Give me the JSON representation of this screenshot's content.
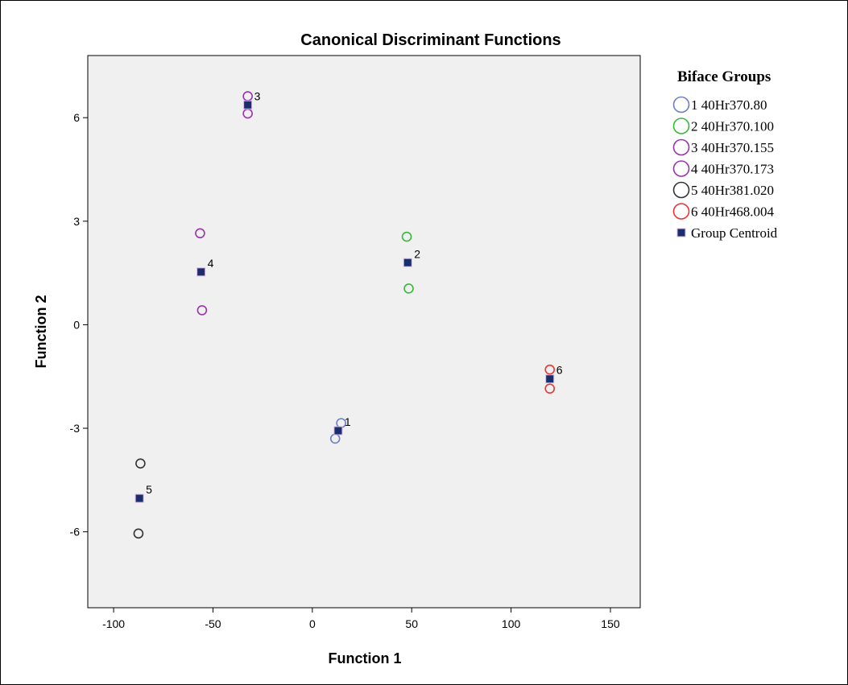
{
  "chart_data": {
    "type": "scatter",
    "title": "Canonical Discriminant Functions",
    "xlabel": "Function 1",
    "ylabel": "Function 2",
    "xlim": [
      -113,
      165
    ],
    "ylim": [
      -8.2,
      7.8
    ],
    "xticks": [
      -100,
      -50,
      0,
      50,
      100,
      150
    ],
    "yticks": [
      -6,
      -3,
      0,
      3,
      6
    ],
    "xtick_labels": [
      "-100",
      "-50",
      "0",
      "50",
      "100",
      "150"
    ],
    "ytick_labels": [
      "-6",
      "-3",
      "0",
      "3",
      "6"
    ],
    "grid": false,
    "legend_title": "Biface Groups",
    "legend_position": "right",
    "plot_background": "#f0f0f0",
    "series": [
      {
        "name": "1 40Hr370.80",
        "color": "#6b7fc4",
        "points": [
          [
            14.5,
            -2.85
          ],
          [
            11.5,
            -3.3
          ]
        ]
      },
      {
        "name": "2 40Hr370.100",
        "color": "#33bb33",
        "points": [
          [
            47.5,
            2.55
          ],
          [
            48.5,
            1.05
          ]
        ]
      },
      {
        "name": "3 40Hr370.155",
        "color": "#9933aa",
        "points": [
          [
            -32.5,
            6.62
          ],
          [
            -32.5,
            6.12
          ]
        ]
      },
      {
        "name": "4 40Hr370.173",
        "color": "#9933aa",
        "points": [
          [
            -56.5,
            2.65
          ],
          [
            -55.5,
            0.42
          ]
        ]
      },
      {
        "name": "5 40Hr381.020",
        "color": "#333333",
        "points": [
          [
            -86.5,
            -4.02
          ],
          [
            -87.5,
            -6.05
          ]
        ]
      },
      {
        "name": "6 40Hr468.004",
        "color": "#ee3333",
        "points": [
          [
            119.5,
            -1.3
          ],
          [
            119.5,
            -1.85
          ]
        ]
      }
    ],
    "centroids": {
      "name": "Group Centroid",
      "color": "#1a2e6e",
      "points": [
        {
          "label": "1",
          "x": 13,
          "y": -3.07
        },
        {
          "label": "2",
          "x": 48,
          "y": 1.8
        },
        {
          "label": "3",
          "x": -32.5,
          "y": 6.37
        },
        {
          "label": "4",
          "x": -56,
          "y": 1.53
        },
        {
          "label": "5",
          "x": -87,
          "y": -5.03
        },
        {
          "label": "6",
          "x": 119.5,
          "y": -1.57
        }
      ]
    }
  }
}
